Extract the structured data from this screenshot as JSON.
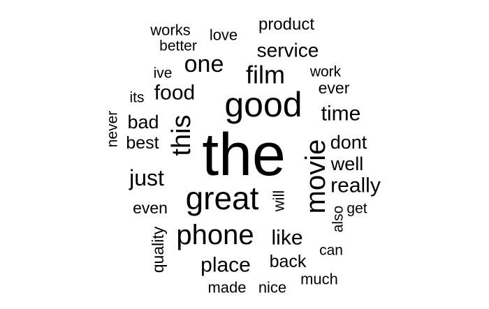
{
  "cloud": {
    "text_color": "#000000",
    "background": "#ffffff",
    "words": [
      {
        "text": "the",
        "orientation": "horizontal"
      },
      {
        "text": "good",
        "orientation": "horizontal"
      },
      {
        "text": "great",
        "orientation": "horizontal"
      },
      {
        "text": "movie",
        "orientation": "vertical"
      },
      {
        "text": "phone",
        "orientation": "horizontal"
      },
      {
        "text": "this",
        "orientation": "vertical"
      },
      {
        "text": "film",
        "orientation": "horizontal"
      },
      {
        "text": "one",
        "orientation": "horizontal"
      },
      {
        "text": "food",
        "orientation": "horizontal"
      },
      {
        "text": "time",
        "orientation": "horizontal"
      },
      {
        "text": "service",
        "orientation": "horizontal"
      },
      {
        "text": "just",
        "orientation": "horizontal"
      },
      {
        "text": "place",
        "orientation": "horizontal"
      },
      {
        "text": "like",
        "orientation": "horizontal"
      },
      {
        "text": "really",
        "orientation": "horizontal"
      },
      {
        "text": "bad",
        "orientation": "horizontal"
      },
      {
        "text": "dont",
        "orientation": "horizontal"
      },
      {
        "text": "well",
        "orientation": "horizontal"
      },
      {
        "text": "best",
        "orientation": "horizontal"
      },
      {
        "text": "back",
        "orientation": "horizontal"
      },
      {
        "text": "product",
        "orientation": "horizontal"
      },
      {
        "text": "works",
        "orientation": "horizontal"
      },
      {
        "text": "love",
        "orientation": "horizontal"
      },
      {
        "text": "better",
        "orientation": "horizontal"
      },
      {
        "text": "ive",
        "orientation": "horizontal"
      },
      {
        "text": "work",
        "orientation": "horizontal"
      },
      {
        "text": "ever",
        "orientation": "horizontal"
      },
      {
        "text": "its",
        "orientation": "horizontal"
      },
      {
        "text": "never",
        "orientation": "vertical"
      },
      {
        "text": "even",
        "orientation": "horizontal"
      },
      {
        "text": "will",
        "orientation": "vertical"
      },
      {
        "text": "also",
        "orientation": "vertical"
      },
      {
        "text": "get",
        "orientation": "horizontal"
      },
      {
        "text": "quality",
        "orientation": "vertical"
      },
      {
        "text": "can",
        "orientation": "horizontal"
      },
      {
        "text": "made",
        "orientation": "horizontal"
      },
      {
        "text": "nice",
        "orientation": "horizontal"
      },
      {
        "text": "much",
        "orientation": "horizontal"
      }
    ]
  }
}
